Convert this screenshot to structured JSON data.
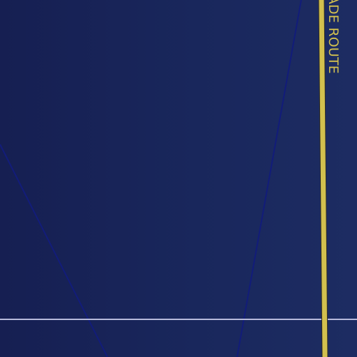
{
  "map": {
    "theme_colors": {
      "background": "#182457",
      "thin_route": "#121c7a",
      "trade_route": "#d2c04e",
      "horizontal_line": "#b8bbdc"
    },
    "route_label": "ADE ROUTE"
  }
}
